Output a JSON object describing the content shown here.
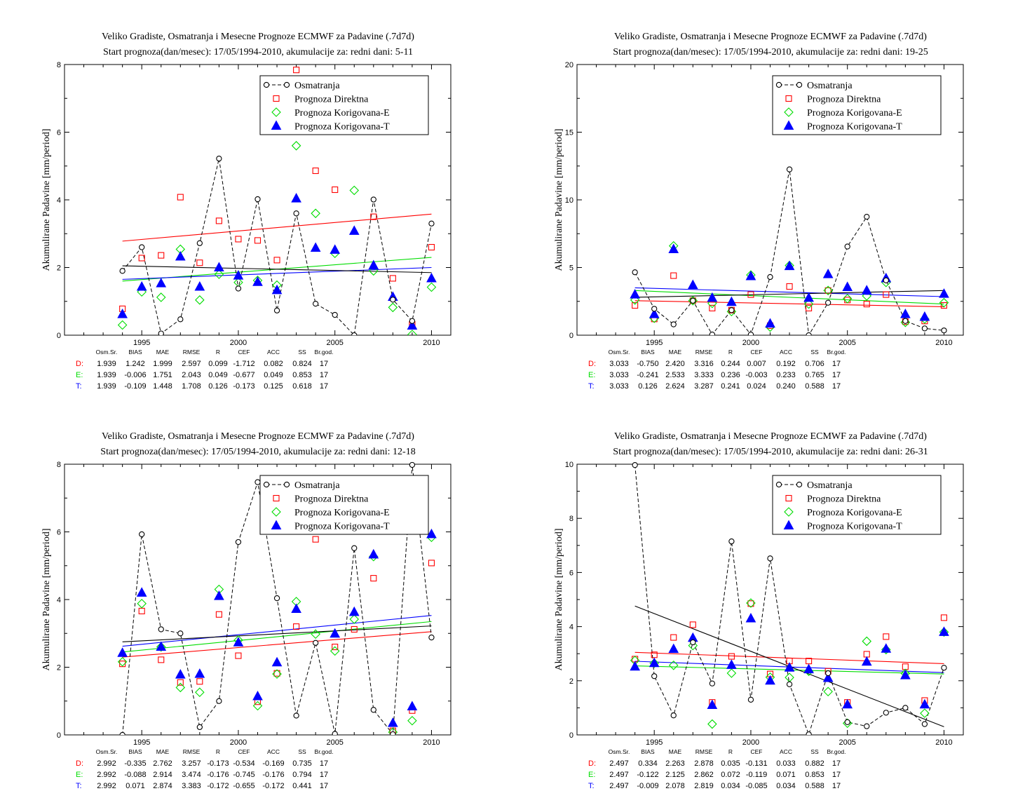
{
  "legend": {
    "obs": "Osmatranja",
    "direct": "Prognoza Direktna",
    "corr_e": "Prognoza Korigovana-E",
    "corr_t": "Prognoza Korigovana-T"
  },
  "colors": {
    "obs": "#000000",
    "direct": "#ff0000",
    "corr_e": "#00dd00",
    "corr_t": "#0000ff"
  },
  "stats_headers": [
    "Osm.Sr.",
    "BIAS",
    "MAE",
    "RMSE",
    "R",
    "CEF",
    "ACC",
    "SS",
    "Br.god."
  ],
  "chart_data": [
    {
      "type": "scatter",
      "title": "Veliko Gradiste, Osmatranja i Mesecne Prognoze ECMWF za Padavine (.7d7d)",
      "subtitle": "Start prognoza(dan/mesec): 17/05/1994-2010, akumulacije za: redni dani: 5-11",
      "ylabel": "Akumulirane Padavine [mm/period]",
      "xlim": [
        1991,
        2011
      ],
      "ylim": [
        0,
        8
      ],
      "xticks": [
        1995,
        2000,
        2005,
        2010
      ],
      "yticks": [
        0,
        2,
        4,
        6,
        8
      ],
      "years": [
        1994,
        1995,
        1996,
        1997,
        1998,
        1999,
        2000,
        2001,
        2002,
        2003,
        2004,
        2005,
        2006,
        2007,
        2008,
        2009,
        2010
      ],
      "series": [
        {
          "name": "Osmatranja",
          "key": "obs",
          "values": [
            1.9,
            2.6,
            0.05,
            0.47,
            2.72,
            5.22,
            1.38,
            4.02,
            0.73,
            3.6,
            0.93,
            0.6,
            0.0,
            4.01,
            1.05,
            0.42,
            3.3
          ]
        },
        {
          "name": "Prognoza Direktna",
          "key": "direct",
          "values": [
            0.78,
            2.28,
            2.36,
            4.08,
            2.14,
            3.38,
            2.84,
            2.8,
            2.22,
            7.84,
            4.86,
            4.3,
            null,
            3.5,
            1.68,
            0.32,
            2.6
          ]
        },
        {
          "name": "Prognoza Korigovana-E",
          "key": "corr_e",
          "values": [
            0.3,
            1.28,
            1.12,
            2.54,
            1.04,
            1.8,
            1.56,
            1.62,
            1.48,
            5.6,
            3.6,
            2.42,
            4.28,
            1.9,
            0.82,
            0.02,
            1.42
          ]
        },
        {
          "name": "Prognoza Korigovana-T",
          "key": "corr_t",
          "values": [
            0.62,
            1.43,
            1.53,
            2.32,
            1.43,
            2.0,
            1.76,
            1.57,
            1.33,
            4.04,
            2.58,
            2.52,
            3.08,
            2.06,
            1.13,
            0.28,
            1.68
          ]
        }
      ],
      "trends": [
        {
          "key": "obs",
          "y0": 2.05,
          "y1": 1.85
        },
        {
          "key": "direct",
          "y0": 2.78,
          "y1": 3.58
        },
        {
          "key": "corr_e",
          "y0": 1.6,
          "y1": 2.3
        },
        {
          "key": "corr_t",
          "y0": 1.65,
          "y1": 2.0
        }
      ],
      "stats": [
        {
          "label": "D:",
          "key": "direct",
          "values": [
            "1.939",
            "1.242",
            "1.999",
            "2.597",
            "0.099",
            "-1.712",
            "0.082",
            "0.824",
            "17"
          ]
        },
        {
          "label": "E:",
          "key": "corr_e",
          "values": [
            "1.939",
            "-0.006",
            "1.751",
            "2.043",
            "0.049",
            "-0.677",
            "0.049",
            "0.853",
            "17"
          ]
        },
        {
          "label": "T:",
          "key": "corr_t",
          "values": [
            "1.939",
            "-0.109",
            "1.448",
            "1.708",
            "0.126",
            "-0.173",
            "0.125",
            "0.618",
            "17"
          ]
        }
      ]
    },
    {
      "type": "scatter",
      "title": "Veliko Gradiste, Osmatranja i Mesecne Prognoze ECMWF za Padavine (.7d7d)",
      "subtitle": "Start prognoza(dan/mesec): 17/05/1994-2010, akumulacije za: redni dani: 19-25",
      "ylabel": "Akumulirane Padavine [mm/period]",
      "xlim": [
        1991,
        2011
      ],
      "ylim": [
        0,
        20
      ],
      "xticks": [
        1995,
        2000,
        2005,
        2010
      ],
      "yticks": [
        0,
        5,
        10,
        15,
        20
      ],
      "years": [
        1994,
        1995,
        1996,
        1997,
        1998,
        1999,
        2000,
        2001,
        2002,
        2003,
        2004,
        2005,
        2006,
        2007,
        2008,
        2009,
        2010
      ],
      "series": [
        {
          "name": "Osmatranja",
          "key": "obs",
          "values": [
            4.65,
            1.95,
            0.8,
            2.55,
            0.05,
            1.85,
            0.05,
            4.3,
            12.25,
            0.0,
            2.4,
            6.55,
            8.75,
            4.05,
            1.05,
            0.5,
            0.35
          ]
        },
        {
          "name": "Prognoza Direktna",
          "key": "direct",
          "values": [
            2.2,
            1.2,
            4.4,
            2.55,
            2.0,
            1.85,
            3.0,
            0.7,
            3.6,
            2.0,
            3.3,
            2.6,
            2.3,
            3.0,
            1.0,
            1.05,
            2.2
          ]
        },
        {
          "name": "Prognoza Korigovana-E",
          "key": "corr_e",
          "values": [
            2.6,
            1.25,
            6.6,
            2.55,
            2.35,
            1.75,
            4.45,
            0.6,
            5.15,
            2.3,
            3.3,
            2.7,
            2.9,
            3.9,
            0.95,
            1.2,
            2.4
          ]
        },
        {
          "name": "Prognoza Korigovana-T",
          "key": "corr_t",
          "values": [
            3.0,
            1.55,
            6.35,
            3.7,
            2.75,
            2.45,
            4.35,
            0.85,
            5.1,
            2.75,
            4.5,
            3.55,
            3.3,
            4.2,
            1.55,
            1.35,
            3.05
          ]
        }
      ],
      "trends": [
        {
          "key": "obs",
          "y0": 2.8,
          "y1": 3.3
        },
        {
          "key": "direct",
          "y0": 2.55,
          "y1": 2.1
        },
        {
          "key": "corr_e",
          "y0": 3.3,
          "y1": 2.3
        },
        {
          "key": "corr_t",
          "y0": 3.5,
          "y1": 2.85
        }
      ],
      "stats": [
        {
          "label": "D:",
          "key": "direct",
          "values": [
            "3.033",
            "-0.750",
            "2.420",
            "3.316",
            "0.244",
            "0.007",
            "0.192",
            "0.706",
            "17"
          ]
        },
        {
          "label": "E:",
          "key": "corr_e",
          "values": [
            "3.033",
            "-0.241",
            "2.533",
            "3.333",
            "0.236",
            "-0.003",
            "0.233",
            "0.765",
            "17"
          ]
        },
        {
          "label": "T:",
          "key": "corr_t",
          "values": [
            "3.033",
            "0.126",
            "2.624",
            "3.287",
            "0.241",
            "0.024",
            "0.240",
            "0.588",
            "17"
          ]
        }
      ]
    },
    {
      "type": "scatter",
      "title": "Veliko Gradiste, Osmatranja i Mesecne Prognoze ECMWF za Padavine (.7d7d)",
      "subtitle": "Start prognoza(dan/mesec): 17/05/1994-2010, akumulacije za: redni dani: 12-18",
      "ylabel": "Akumulirane Padavine [mm/period]",
      "xlim": [
        1991,
        2011
      ],
      "ylim": [
        0,
        8
      ],
      "xticks": [
        1995,
        2000,
        2005,
        2010
      ],
      "yticks": [
        0,
        2,
        4,
        6,
        8
      ],
      "years": [
        1994,
        1995,
        1996,
        1997,
        1998,
        1999,
        2000,
        2001,
        2002,
        2003,
        2004,
        2005,
        2006,
        2007,
        2008,
        2009,
        2010
      ],
      "series": [
        {
          "name": "Osmatranja",
          "key": "obs",
          "values": [
            0.0,
            5.93,
            3.12,
            3.0,
            0.23,
            1.0,
            5.7,
            7.47,
            4.04,
            0.57,
            2.72,
            0.03,
            5.52,
            0.74,
            0.02,
            7.98,
            2.88
          ]
        },
        {
          "name": "Prognoza Direktna",
          "key": "direct",
          "values": [
            2.1,
            3.66,
            2.22,
            1.55,
            1.58,
            3.56,
            2.34,
            0.98,
            1.82,
            3.2,
            5.78,
            2.6,
            3.12,
            4.63,
            0.12,
            0.72,
            5.08
          ]
        },
        {
          "name": "Prognoza Korigovana-E",
          "key": "corr_e",
          "values": [
            2.16,
            3.88,
            2.6,
            1.4,
            1.26,
            4.3,
            2.8,
            0.86,
            1.8,
            3.94,
            2.98,
            2.48,
            3.42,
            5.27,
            0.08,
            0.42,
            5.84
          ]
        },
        {
          "name": "Prognoza Korigovana-T",
          "key": "corr_t",
          "values": [
            2.42,
            4.2,
            2.6,
            1.78,
            1.8,
            4.1,
            2.73,
            1.14,
            2.14,
            3.72,
            null,
            2.99,
            3.63,
            5.33,
            0.35,
            0.84,
            5.93
          ]
        }
      ],
      "trends": [
        {
          "key": "obs",
          "y0": 2.75,
          "y1": 3.22
        },
        {
          "key": "direct",
          "y0": 2.3,
          "y1": 3.05
        },
        {
          "key": "corr_e",
          "y0": 2.45,
          "y1": 3.35
        },
        {
          "key": "corr_t",
          "y0": 2.62,
          "y1": 3.53
        }
      ],
      "stats": [
        {
          "label": "D:",
          "key": "direct",
          "values": [
            "2.992",
            "-0.335",
            "2.762",
            "3.257",
            "-0.173",
            "-0.534",
            "-0.169",
            "0.735",
            "17"
          ]
        },
        {
          "label": "E:",
          "key": "corr_e",
          "values": [
            "2.992",
            "-0.088",
            "2.914",
            "3.474",
            "-0.176",
            "-0.745",
            "-0.176",
            "0.794",
            "17"
          ]
        },
        {
          "label": "T:",
          "key": "corr_t",
          "values": [
            "2.992",
            "0.071",
            "2.874",
            "3.383",
            "-0.172",
            "-0.655",
            "-0.172",
            "0.441",
            "17"
          ]
        }
      ]
    },
    {
      "type": "scatter",
      "title": "Veliko Gradiste, Osmatranja i Mesecne Prognoze ECMWF za Padavine (.7d7d)",
      "subtitle": "Start prognoza(dan/mesec): 17/05/1994-2010, akumulacije za: redni dani: 26-31",
      "ylabel": "Akumulirane Padavine [mm/period]",
      "xlim": [
        1991,
        2011
      ],
      "ylim": [
        0,
        10
      ],
      "xticks": [
        1995,
        2000,
        2005,
        2010
      ],
      "yticks": [
        0,
        2,
        4,
        6,
        8,
        10
      ],
      "years": [
        1994,
        1995,
        1996,
        1997,
        1998,
        1999,
        2000,
        2001,
        2002,
        2003,
        2004,
        2005,
        2006,
        2007,
        2008,
        2009,
        2010
      ],
      "series": [
        {
          "name": "Osmatranja",
          "key": "obs",
          "values": [
            9.97,
            2.17,
            0.72,
            3.42,
            1.9,
            7.15,
            1.3,
            6.52,
            1.87,
            0.02,
            2.28,
            0.47,
            0.32,
            0.82,
            1.0,
            0.4,
            2.48
          ]
        },
        {
          "name": "Prognoza Direktna",
          "key": "direct",
          "values": [
            2.8,
            2.96,
            3.6,
            4.07,
            1.2,
            2.9,
            4.85,
            2.25,
            2.73,
            2.73,
            2.35,
            1.2,
            2.98,
            3.63,
            2.52,
            1.27,
            4.33
          ]
        },
        {
          "name": "Prognoza Korigovana-E",
          "key": "corr_e",
          "values": [
            2.75,
            2.65,
            2.57,
            3.3,
            0.4,
            2.28,
            4.87,
            2.13,
            2.12,
            2.35,
            1.6,
            0.43,
            3.46,
            3.15,
            2.27,
            0.8,
            3.8
          ]
        },
        {
          "name": "Prognoza Korigovana-T",
          "key": "corr_t",
          "values": [
            2.52,
            2.65,
            3.17,
            3.58,
            1.1,
            2.58,
            4.3,
            2.0,
            2.48,
            2.42,
            2.1,
            1.12,
            2.7,
            3.18,
            2.2,
            1.12,
            3.8
          ]
        }
      ],
      "trends": [
        {
          "key": "obs",
          "y0": 4.76,
          "y1": 0.3
        },
        {
          "key": "direct",
          "y0": 3.05,
          "y1": 2.63
        },
        {
          "key": "corr_e",
          "y0": 2.55,
          "y1": 2.25
        },
        {
          "key": "corr_t",
          "y0": 2.72,
          "y1": 2.3
        }
      ],
      "stats": [
        {
          "label": "D:",
          "key": "direct",
          "values": [
            "2.497",
            "0.334",
            "2.263",
            "2.878",
            "0.035",
            "-0.131",
            "0.033",
            "0.882",
            "17"
          ]
        },
        {
          "label": "E:",
          "key": "corr_e",
          "values": [
            "2.497",
            "-0.122",
            "2.125",
            "2.862",
            "0.072",
            "-0.119",
            "0.071",
            "0.853",
            "17"
          ]
        },
        {
          "label": "T:",
          "key": "corr_t",
          "values": [
            "2.497",
            "-0.009",
            "2.078",
            "2.819",
            "0.034",
            "-0.085",
            "0.034",
            "0.588",
            "17"
          ]
        }
      ]
    }
  ]
}
